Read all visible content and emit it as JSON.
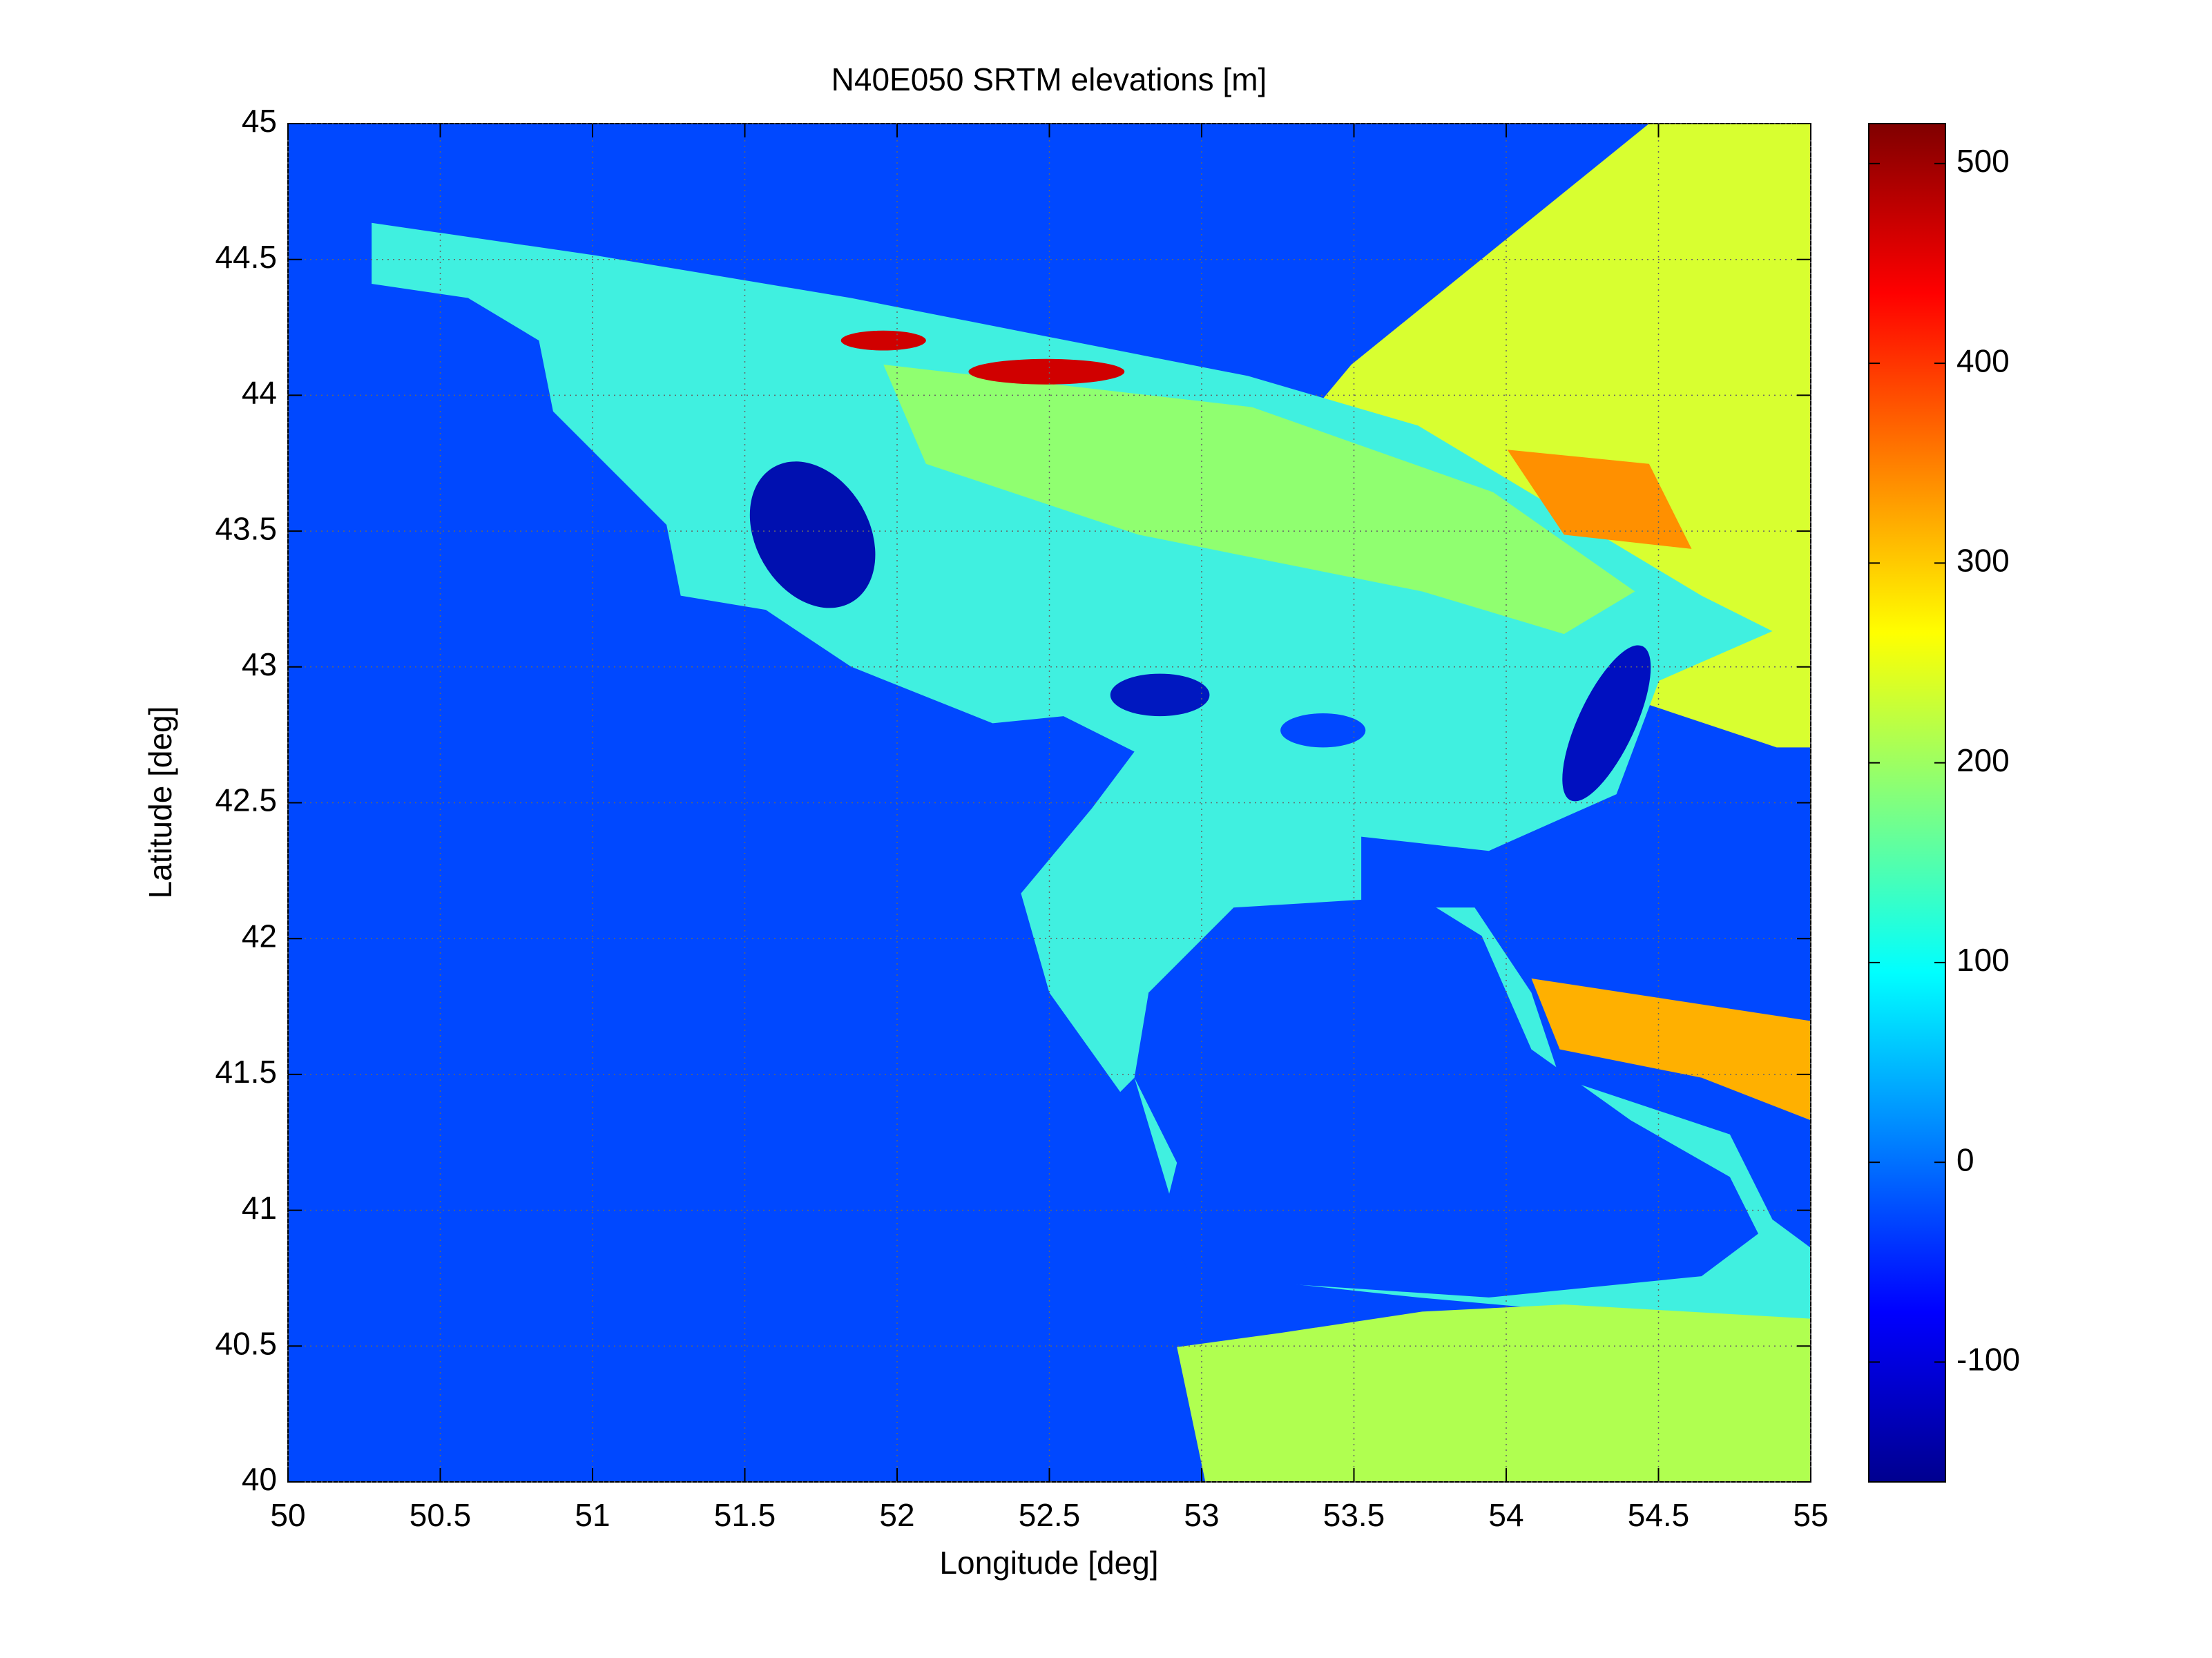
{
  "chart_data": {
    "type": "heatmap",
    "title": "N40E050 SRTM elevations [m]",
    "x_label": "Longitude [deg]",
    "y_label": "Latitude [deg]",
    "xlim": [
      50,
      55
    ],
    "xticks": [
      50,
      50.5,
      51,
      51.5,
      52,
      52.5,
      53,
      53.5,
      54,
      54.5,
      55
    ],
    "ylim": [
      40,
      45
    ],
    "yticks": [
      40,
      40.5,
      41,
      41.5,
      42,
      42.5,
      43,
      43.5,
      44,
      44.5,
      45
    ],
    "grid": true,
    "colormap": "jet",
    "colorbar": {
      "lim": [
        -160,
        520
      ],
      "ticks": [
        -100,
        0,
        100,
        200,
        300,
        400,
        500
      ]
    }
  }
}
